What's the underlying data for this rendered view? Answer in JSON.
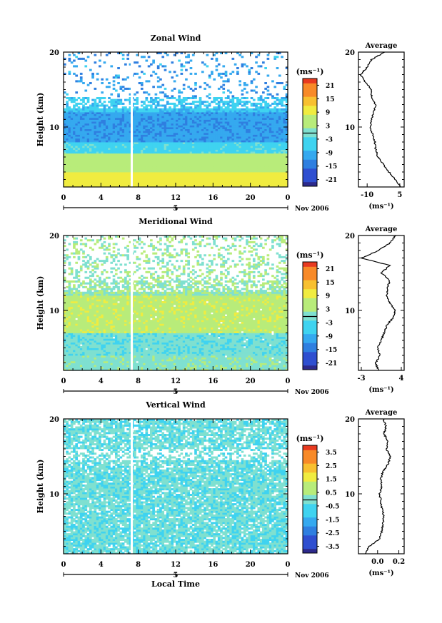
{
  "chart_data": [
    {
      "type": "heatmap",
      "title": "Zonal Wind",
      "ylabel": "Height (km)",
      "unit_label": "(ms⁻¹)",
      "x_ticks": [
        "0",
        "4",
        "8",
        "12",
        "16",
        "20",
        "0"
      ],
      "day_label": "5",
      "month_label": "Nov 2006",
      "xlim": [
        0,
        24
      ],
      "ylim": [
        2,
        20
      ],
      "y_ticks": [
        "10",
        "20"
      ],
      "colorbar_ticks": [
        "21",
        "15",
        "9",
        "3",
        "-3",
        "-9",
        "-15",
        "-21"
      ],
      "colorbar_range": [
        -24,
        24
      ],
      "profile": {
        "title": "Average",
        "xlabel": "(ms⁻¹)",
        "x_ticks": [
          "-10",
          "5"
        ],
        "xlim": [
          -14,
          7
        ],
        "y_ticks": [
          "10",
          "20"
        ],
        "heights": [
          2,
          3,
          4,
          5,
          6,
          7,
          8,
          9,
          10,
          11,
          12,
          13,
          14,
          15,
          16,
          17,
          18,
          19,
          20
        ],
        "values": [
          5.5,
          3,
          0,
          -2.5,
          -5,
          -6,
          -6.5,
          -7.5,
          -8.5,
          -8,
          -7,
          -6,
          -8,
          -8,
          -11,
          -13,
          -10,
          -8,
          -2
        ]
      }
    },
    {
      "type": "heatmap",
      "title": "Meridional Wind",
      "ylabel": "Height (km)",
      "unit_label": "(ms⁻¹)",
      "x_ticks": [
        "0",
        "4",
        "8",
        "12",
        "16",
        "20",
        "0"
      ],
      "day_label": "5",
      "month_label": "Nov 2006",
      "xlim": [
        0,
        24
      ],
      "ylim": [
        2,
        20
      ],
      "y_ticks": [
        "10",
        "20"
      ],
      "colorbar_ticks": [
        "21",
        "15",
        "9",
        "3",
        "-3",
        "-9",
        "-15",
        "-21"
      ],
      "colorbar_range": [
        -24,
        24
      ],
      "profile": {
        "title": "Average",
        "xlabel": "(ms⁻¹)",
        "x_ticks": [
          "-3",
          "4"
        ],
        "xlim": [
          -3.5,
          4.5
        ],
        "y_ticks": [
          "10",
          "20"
        ],
        "heights": [
          2,
          3,
          4,
          5,
          6,
          7,
          8,
          9,
          10,
          11,
          12,
          13,
          14,
          15,
          16,
          17,
          18,
          19,
          20
        ],
        "values": [
          0,
          -0.5,
          0.3,
          -0.2,
          0.5,
          1,
          1.5,
          2.5,
          3,
          2,
          1.5,
          1.5,
          2,
          0.5,
          2,
          -3,
          0,
          2,
          3
        ]
      }
    },
    {
      "type": "heatmap",
      "title": "Vertical Wind",
      "ylabel": "Height (km)",
      "unit_label": "(ms⁻¹)",
      "x_ticks": [
        "0",
        "4",
        "8",
        "12",
        "16",
        "20",
        "0"
      ],
      "day_label": "5",
      "month_label": "Nov 2006",
      "xlabel": "Local Time",
      "xlim": [
        0,
        24
      ],
      "ylim": [
        2,
        20
      ],
      "y_ticks": [
        "10",
        "20"
      ],
      "colorbar_ticks": [
        "3.5",
        "2.5",
        "1.5",
        "0.5",
        "-0.5",
        "-1.5",
        "-2.5",
        "-3.5"
      ],
      "colorbar_range": [
        -4,
        4
      ],
      "profile": {
        "title": "Average",
        "xlabel": "(ms⁻¹)",
        "x_ticks": [
          "0.0",
          "0.2"
        ],
        "xlim": [
          -0.18,
          0.25
        ],
        "y_ticks": [
          "10",
          "20"
        ],
        "heights": [
          2,
          3,
          4,
          5,
          6,
          7,
          8,
          9,
          10,
          11,
          12,
          13,
          14,
          15,
          16,
          17,
          18,
          19,
          20
        ],
        "values": [
          -0.12,
          -0.08,
          0.02,
          0.04,
          0.05,
          0.06,
          0.04,
          0.03,
          0.02,
          0.04,
          0.03,
          0.05,
          0.1,
          0.12,
          0.08,
          0.1,
          0.06,
          0.08,
          0.05
        ]
      }
    }
  ]
}
